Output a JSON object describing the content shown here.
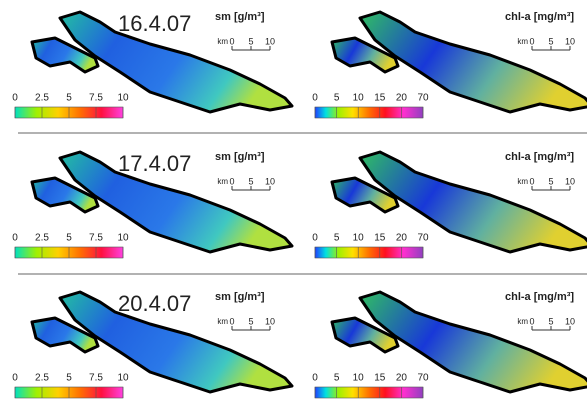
{
  "panels": [
    {
      "date": "16.4.07",
      "sm": {
        "label": "sm [g/m³]",
        "scale_unit": "km",
        "scale_ticks": [
          0,
          5,
          10
        ],
        "colorbar": [
          0,
          2.5,
          5,
          7.5,
          10
        ]
      },
      "chl": {
        "label": "chl-a [mg/m³]",
        "scale_unit": "km",
        "scale_ticks": [
          0,
          5,
          10
        ],
        "colorbar": [
          0,
          5,
          10,
          15,
          20,
          70
        ]
      }
    },
    {
      "date": "17.4.07",
      "sm": {
        "label": "sm [g/m³]",
        "scale_unit": "km",
        "scale_ticks": [
          0,
          5,
          10
        ],
        "colorbar": [
          0,
          2.5,
          5,
          7.5,
          10
        ]
      },
      "chl": {
        "label": "chl-a [mg/m³]",
        "scale_unit": "km",
        "scale_ticks": [
          0,
          5,
          10
        ],
        "colorbar": [
          0,
          5,
          10,
          15,
          20,
          70
        ]
      }
    },
    {
      "date": "20.4.07",
      "sm": {
        "label": "sm [g/m³]",
        "scale_unit": "km",
        "scale_ticks": [
          0,
          5,
          10
        ],
        "colorbar": [
          0,
          2.5,
          5,
          7.5,
          10
        ]
      },
      "chl": {
        "label": "chl-a [mg/m³]",
        "scale_unit": "km",
        "scale_ticks": [
          0,
          5,
          10
        ],
        "colorbar": [
          0,
          5,
          10,
          15,
          20,
          70
        ]
      }
    }
  ]
}
